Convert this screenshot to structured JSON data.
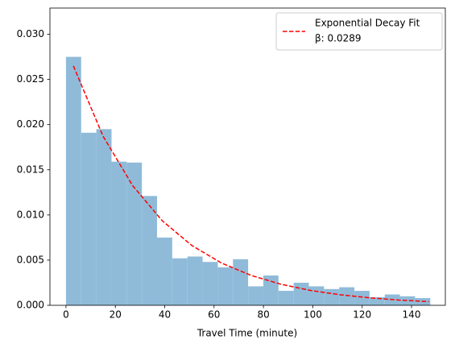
{
  "chart_data": {
    "type": "histogram",
    "xlabel": "Travel Time (minute)",
    "bins": [
      0,
      6.15,
      12.3,
      18.45,
      24.6,
      30.75,
      36.9,
      43.05,
      49.2,
      55.35,
      61.5,
      67.65,
      73.8,
      79.95,
      86.1,
      92.25,
      98.4,
      104.55,
      110.7,
      116.85,
      123,
      129.15,
      135.3,
      141.45,
      147.6
    ],
    "counts": [
      0.0275,
      0.0191,
      0.0195,
      0.0159,
      0.0158,
      0.0121,
      0.0075,
      0.0052,
      0.0054,
      0.0048,
      0.0042,
      0.0051,
      0.0021,
      0.0033,
      0.0016,
      0.0025,
      0.0021,
      0.0018,
      0.002,
      0.0016,
      0.0009,
      0.0012,
      0.001,
      0.0008
    ],
    "color": "#8fbbd9",
    "series": [
      {
        "name": "Exponential Decay Fit",
        "color": "#ff0000",
        "dashed": true,
        "x": [
          3,
          15,
          27,
          39,
          51,
          63,
          75,
          87,
          99,
          111,
          123,
          135,
          147
        ],
        "values": [
          0.0265,
          0.01873,
          0.01325,
          0.00936,
          0.00662,
          0.00468,
          0.00331,
          0.00234,
          0.00165,
          0.00117,
          0.00083,
          0.00058,
          0.00041
        ]
      }
    ],
    "annotations": [
      "β: 0.0289"
    ],
    "legend": "upper right",
    "xlim": [
      -6.5,
      153.7
    ],
    "ylim": [
      0,
      0.0329
    ],
    "xticks": [
      0,
      20,
      40,
      60,
      80,
      100,
      120,
      140
    ],
    "yticks": [
      {
        "value": 0,
        "label": "0.000"
      },
      {
        "value": 0.005,
        "label": "0.005"
      },
      {
        "value": 0.01,
        "label": "0.010"
      },
      {
        "value": 0.015,
        "label": "0.015"
      },
      {
        "value": 0.02,
        "label": "0.020"
      },
      {
        "value": 0.025,
        "label": "0.025"
      },
      {
        "value": 0.03,
        "label": "0.030"
      }
    ]
  }
}
